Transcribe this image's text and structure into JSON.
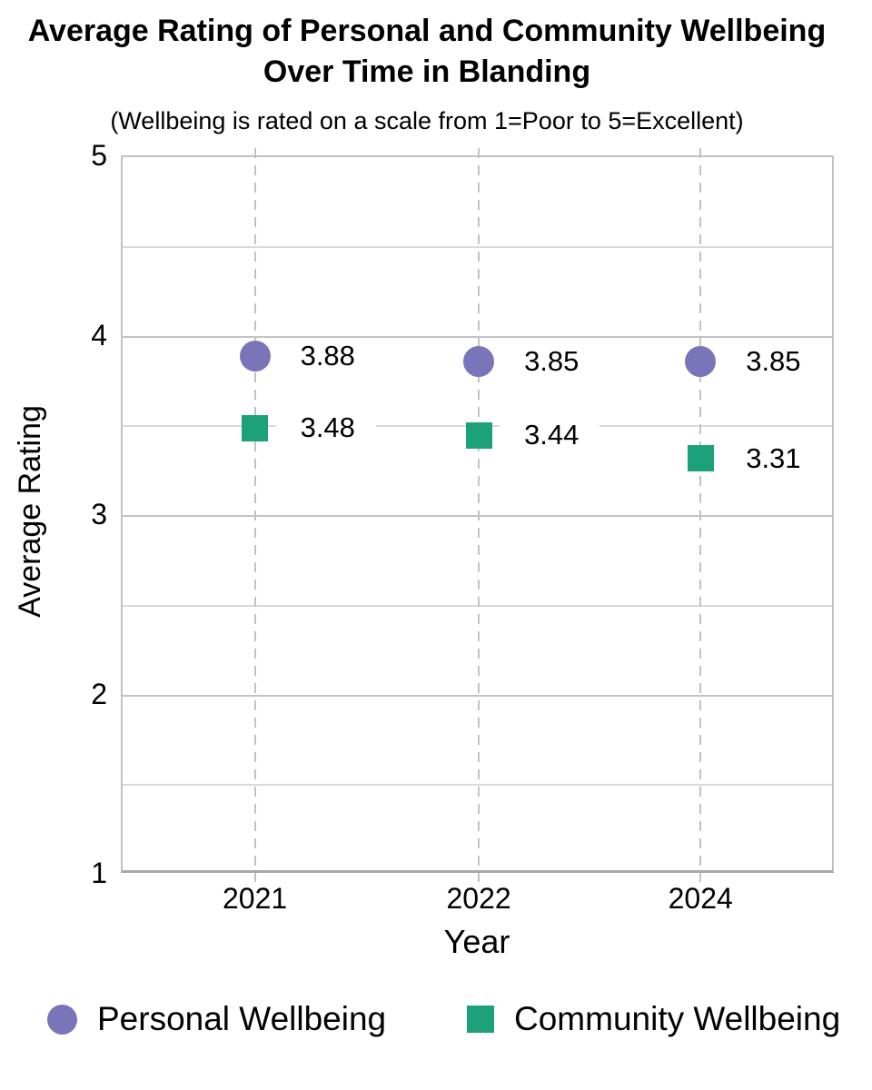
{
  "title": {
    "lines": [
      "Average Rating of Personal and Community Wellbeing",
      "Over Time in Blanding"
    ]
  },
  "subtitle": "(Wellbeing is rated on a scale from 1=Poor to 5=Excellent)",
  "axes": {
    "x_label": "Year",
    "y_label": "Average Rating"
  },
  "colors": {
    "personal": "#7a74b9",
    "community": "#1da17b",
    "gridline_minor": "#d9d9d9",
    "gridline_major": "#c3c3c3",
    "plot_border": "#c2c2c2",
    "axis_line": "#a9a9a9",
    "text": "#000000"
  },
  "chart_data": {
    "type": "scatter",
    "categories": [
      "2021",
      "2022",
      "2024"
    ],
    "series": [
      {
        "name": "Personal Wellbeing",
        "marker": "circle",
        "color": "#7a74b9",
        "values": [
          3.88,
          3.85,
          3.85
        ],
        "labels": [
          "3.88",
          "3.85",
          "3.85"
        ]
      },
      {
        "name": "Community Wellbeing",
        "marker": "square",
        "color": "#1da17b",
        "values": [
          3.48,
          3.44,
          3.31
        ],
        "labels": [
          "3.48",
          "3.44",
          "3.31"
        ]
      }
    ],
    "title": "Average Rating of Personal and Community Wellbeing Over Time in Blanding",
    "subtitle": "(Wellbeing is rated on a scale from 1=Poor to 5=Excellent)",
    "xlabel": "Year",
    "ylabel": "Average Rating",
    "ylim": [
      1,
      5
    ],
    "yticks": [
      5,
      4,
      3,
      2,
      1
    ],
    "gridline_step": 0.5,
    "grid": true,
    "vertical_gridlines": "dashed line at each category",
    "data_labels": true,
    "legend_position": "bottom"
  }
}
